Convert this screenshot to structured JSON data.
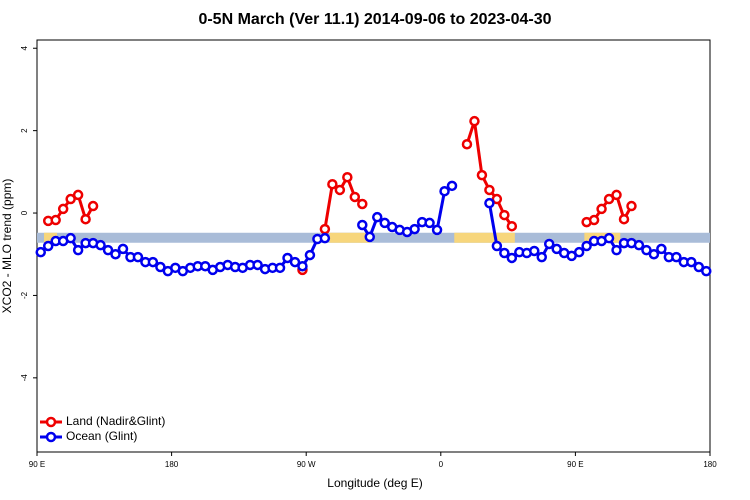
{
  "chart_data": {
    "type": "line",
    "title": "0-5N March (Ver 11.1)   2014-09-06 to 2023-04-30",
    "x_label": "Longitude (deg E)",
    "y_label": "XCO2 - MLO trend (ppm)",
    "xlim": [
      90,
      540
    ],
    "ylim": [
      -5.8,
      4.2
    ],
    "xticks": [
      {
        "value": 90,
        "label": "90 E"
      },
      180,
      {
        "value": 270,
        "label": "90 W"
      },
      {
        "value": 360,
        "label": "0"
      },
      {
        "value": 450,
        "label": "90 E"
      },
      {
        "value": 540,
        "label": "180"
      }
    ],
    "yticks": [
      4,
      2,
      0,
      -2,
      -4
    ],
    "legend": "bottom-left",
    "mask": {
      "y": -0.6,
      "ocean_color": "#a9bcd8",
      "land_color": "#f7d67c",
      "land": [
        [
          94.7,
          103.4
        ],
        [
          285.6,
          312.4
        ],
        [
          369,
          409.5
        ],
        [
          456,
          480
        ]
      ]
    },
    "x": [
      92.5,
      97.5,
      102.5,
      107.5,
      112.5,
      117.5,
      122.5,
      127.5,
      132.5,
      137.5,
      142.5,
      147.5,
      152.5,
      157.5,
      162.5,
      167.5,
      172.5,
      177.5,
      182.5,
      187.5,
      192.5,
      197.5,
      202.5,
      207.5,
      212.5,
      217.5,
      222.5,
      227.5,
      232.5,
      237.5,
      242.5,
      247.5,
      252.5,
      257.5,
      262.5,
      267.5,
      272.5,
      277.5,
      282.5,
      287.5,
      292.5,
      297.5,
      302.5,
      307.5,
      312.5,
      317.5,
      322.5,
      327.5,
      332.5,
      337.5,
      342.5,
      347.5,
      352.5,
      357.5,
      362.5,
      367.5,
      372.5,
      377.5,
      382.5,
      387.5,
      392.5,
      397.5,
      402.5,
      407.5,
      412.5,
      417.5,
      422.5,
      427.5,
      432.5,
      437.5,
      442.5,
      447.5,
      452.5,
      457.5,
      462.5,
      467.5,
      472.5,
      477.5,
      482.5,
      487.5,
      492.5,
      497.5,
      502.5,
      507.5,
      512.5,
      517.5,
      522.5,
      527.5,
      532.5,
      537.5
    ],
    "series": [
      {
        "name": "Land (Nadir&Glint)",
        "color": "#ee0000",
        "values": [
          null,
          -0.19,
          -0.17,
          0.1,
          0.34,
          0.44,
          -0.15,
          0.17,
          null,
          null,
          null,
          null,
          null,
          null,
          null,
          null,
          null,
          null,
          null,
          null,
          null,
          null,
          null,
          null,
          null,
          null,
          null,
          null,
          null,
          null,
          null,
          null,
          null,
          null,
          null,
          -1.38,
          null,
          null,
          -0.39,
          0.7,
          0.56,
          0.87,
          0.39,
          0.22,
          null,
          null,
          null,
          null,
          null,
          null,
          null,
          null,
          null,
          null,
          null,
          null,
          null,
          1.67,
          2.23,
          0.92,
          0.56,
          0.34,
          -0.05,
          -0.32,
          null,
          null,
          null,
          null,
          null,
          null,
          null,
          null,
          null,
          -0.22,
          -0.17,
          0.1,
          0.34,
          0.44,
          -0.15,
          0.17,
          null,
          null,
          null,
          null,
          null,
          null,
          null,
          null,
          null,
          null
        ]
      },
      {
        "name": "Ocean (Glint)",
        "color": "#0000ee",
        "values": [
          -0.95,
          -0.8,
          -0.68,
          -0.68,
          -0.61,
          -0.9,
          -0.73,
          -0.73,
          -0.78,
          -0.9,
          -1.0,
          -0.87,
          -1.07,
          -1.07,
          -1.19,
          -1.19,
          -1.31,
          -1.41,
          -1.33,
          -1.41,
          -1.33,
          -1.29,
          -1.29,
          -1.38,
          -1.31,
          -1.26,
          -1.31,
          -1.33,
          -1.26,
          -1.26,
          -1.36,
          -1.33,
          -1.33,
          -1.09,
          -1.19,
          -1.29,
          -1.02,
          -0.63,
          -0.61,
          null,
          null,
          null,
          null,
          -0.29,
          -0.58,
          -0.1,
          -0.24,
          -0.34,
          -0.41,
          -0.46,
          -0.39,
          -0.22,
          -0.24,
          -0.41,
          0.53,
          0.66,
          null,
          null,
          null,
          null,
          0.24,
          -0.8,
          -0.97,
          -1.09,
          -0.95,
          -0.97,
          -0.92,
          -1.07,
          -0.75,
          -0.87,
          -0.97,
          -1.04,
          -0.95,
          -0.8,
          -0.68,
          -0.68,
          -0.61,
          -0.9,
          -0.73,
          -0.73,
          -0.78,
          -0.9,
          -1.0,
          -0.87,
          -1.07,
          -1.07,
          -1.19,
          -1.19,
          -1.31,
          -1.41
        ]
      }
    ]
  }
}
